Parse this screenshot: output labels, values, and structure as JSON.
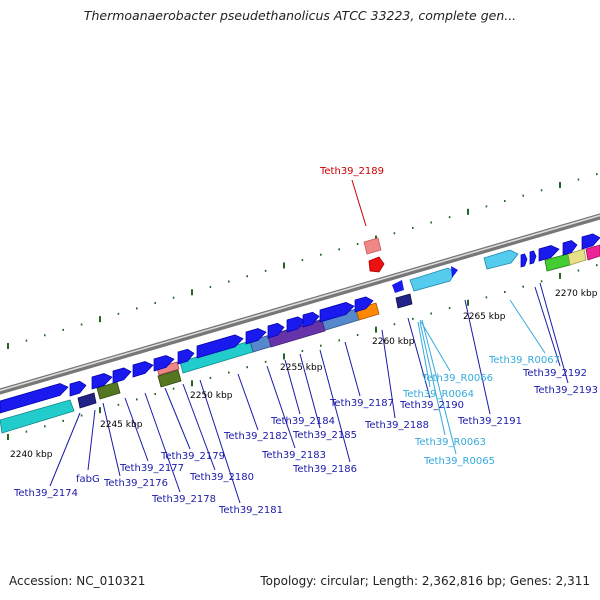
{
  "title": "Thermoanaerobacter pseudethanolicus ATCC 33223, complete gen...",
  "footer": {
    "accession": "Accession: NC_010321",
    "topology": "Topology: circular; Length: 2,362,816 bp; Genes: 2,311"
  },
  "colors": {
    "forward_gene": "#1a1aee",
    "reverse_gene": "#22cccc",
    "highlight_gene": "#ee1111",
    "rna_gene": "#55ccee",
    "locus_label": "#1a1aaa",
    "rna_label": "#33aadd",
    "highlight_label": "#cc0000",
    "tick_label": "#000000",
    "tick_mark": "#226622"
  },
  "scale_labels": [
    "2240 kbp",
    "2245 kbp",
    "2250 kbp",
    "2255 kbp",
    "2260 kbp",
    "2265 kbp",
    "2270 kbp"
  ],
  "gene_labels": [
    "Teth39_2174",
    "fabG",
    "Teth39_2176",
    "Teth39_2177",
    "Teth39_2178",
    "Teth39_2179",
    "Teth39_2180",
    "Teth39_2181",
    "Teth39_2182",
    "Teth39_2183",
    "Teth39_2184",
    "Teth39_2185",
    "Teth39_2186",
    "Teth39_2187",
    "Teth39_2188",
    "Teth39_2190",
    "Teth39_2191",
    "Teth39_2192",
    "Teth39_2193",
    "Teth39_2189"
  ],
  "rna_labels": [
    "Teth39_R0066",
    "Teth39_R0064",
    "Teth39_R0063",
    "Teth39_R0065",
    "Teth39_R0067"
  ]
}
